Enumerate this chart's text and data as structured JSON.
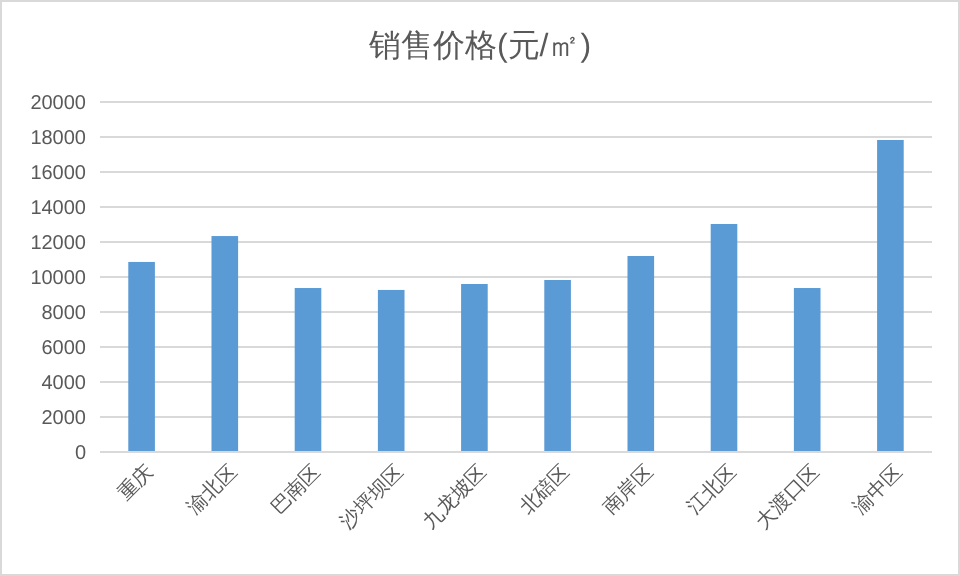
{
  "chart_data": {
    "type": "bar",
    "title": "销售价格(元/㎡)",
    "categories": [
      "重庆",
      "渝北区",
      "巴南区",
      "沙坪坝区",
      "九龙坡区",
      "北碚区",
      "南岸区",
      "江北区",
      "大渡口区",
      "渝中区"
    ],
    "values": [
      10860,
      12340,
      9370,
      9260,
      9600,
      9830,
      11200,
      13030,
      9370,
      17830
    ],
    "color": "#5b9bd5",
    "ylim": [
      0,
      20000
    ],
    "yticks": [
      0,
      2000,
      4000,
      6000,
      8000,
      10000,
      12000,
      14000,
      16000,
      18000,
      20000
    ],
    "grid": "y"
  }
}
